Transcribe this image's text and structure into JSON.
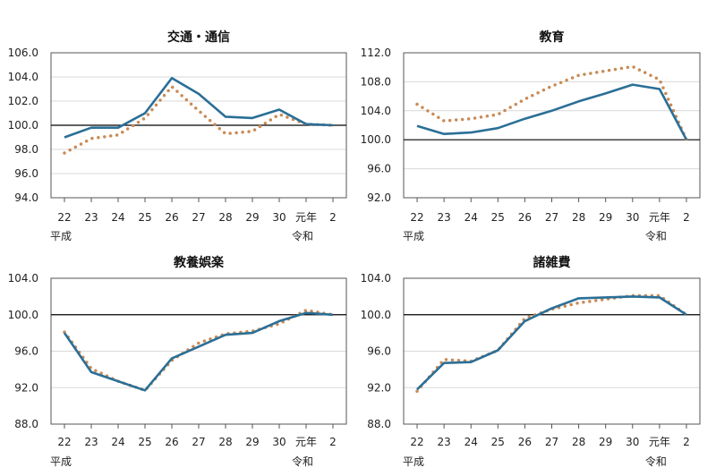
{
  "colors": {
    "series_solid": "#2a6f97",
    "series_dotted": "#c98a55",
    "grid": "#d9d9d9",
    "baseline": "#000000"
  },
  "chart_data": [
    {
      "type": "line",
      "title": "交通・通信",
      "categories": [
        "22",
        "23",
        "24",
        "25",
        "26",
        "27",
        "28",
        "29",
        "30",
        "元年",
        "2"
      ],
      "era_labels": [
        {
          "at": "22",
          "text": "平成"
        },
        {
          "at": "元年",
          "text": "令和"
        }
      ],
      "ylim": [
        94,
        106
      ],
      "yticks": [
        "94.0",
        "96.0",
        "98.0",
        "100.0",
        "102.0",
        "104.0",
        "106.0"
      ],
      "grid": true,
      "reference_line": 100,
      "series": [
        {
          "style": "solid",
          "values": [
            99.0,
            99.8,
            99.8,
            101.0,
            103.9,
            102.6,
            100.7,
            100.6,
            101.3,
            100.1,
            100.0
          ]
        },
        {
          "style": "dotted",
          "values": [
            97.7,
            98.9,
            99.2,
            100.6,
            103.2,
            101.2,
            99.3,
            99.5,
            100.9,
            100.1,
            100.0
          ]
        }
      ]
    },
    {
      "type": "line",
      "title": "教育",
      "categories": [
        "22",
        "23",
        "24",
        "25",
        "26",
        "27",
        "28",
        "29",
        "30",
        "元年",
        "2"
      ],
      "era_labels": [
        {
          "at": "22",
          "text": "平成"
        },
        {
          "at": "元年",
          "text": "令和"
        }
      ],
      "ylim": [
        92,
        112
      ],
      "yticks": [
        "92.0",
        "96.0",
        "100.0",
        "104.0",
        "108.0",
        "112.0"
      ],
      "grid": true,
      "reference_line": 100,
      "series": [
        {
          "style": "solid",
          "values": [
            101.9,
            100.8,
            101.0,
            101.6,
            102.9,
            104.0,
            105.3,
            106.4,
            107.6,
            107.0,
            100.0
          ]
        },
        {
          "style": "dotted",
          "values": [
            104.9,
            102.6,
            102.9,
            103.5,
            105.6,
            107.4,
            108.9,
            109.5,
            110.1,
            108.3,
            100.0
          ]
        }
      ]
    },
    {
      "type": "line",
      "title": "教養娯楽",
      "categories": [
        "22",
        "23",
        "24",
        "25",
        "26",
        "27",
        "28",
        "29",
        "30",
        "元年",
        "2"
      ],
      "era_labels": [
        {
          "at": "22",
          "text": "平成"
        },
        {
          "at": "元年",
          "text": "令和"
        }
      ],
      "ylim": [
        88,
        104
      ],
      "yticks": [
        "88.0",
        "92.0",
        "96.0",
        "100.0",
        "104.0"
      ],
      "grid": true,
      "reference_line": 100,
      "series": [
        {
          "style": "solid",
          "values": [
            98.0,
            93.7,
            92.7,
            91.7,
            95.2,
            96.5,
            97.8,
            98.0,
            99.3,
            100.2,
            100.0
          ]
        },
        {
          "style": "dotted",
          "values": [
            98.1,
            94.1,
            92.7,
            91.7,
            95.0,
            96.9,
            97.9,
            98.2,
            99.0,
            100.5,
            100.0
          ]
        }
      ]
    },
    {
      "type": "line",
      "title": "諸雑費",
      "categories": [
        "22",
        "23",
        "24",
        "25",
        "26",
        "27",
        "28",
        "29",
        "30",
        "元年",
        "2"
      ],
      "era_labels": [
        {
          "at": "22",
          "text": "平成"
        },
        {
          "at": "元年",
          "text": "令和"
        }
      ],
      "ylim": [
        88,
        104
      ],
      "yticks": [
        "88.0",
        "92.0",
        "96.0",
        "100.0",
        "104.0"
      ],
      "grid": true,
      "reference_line": 100,
      "series": [
        {
          "style": "solid",
          "values": [
            91.8,
            94.7,
            94.8,
            96.1,
            99.3,
            100.7,
            101.8,
            101.9,
            102.0,
            101.9,
            100.0
          ]
        },
        {
          "style": "dotted",
          "values": [
            91.6,
            95.1,
            94.9,
            96.1,
            99.6,
            100.6,
            101.3,
            101.7,
            102.1,
            102.1,
            100.0
          ]
        }
      ]
    }
  ]
}
